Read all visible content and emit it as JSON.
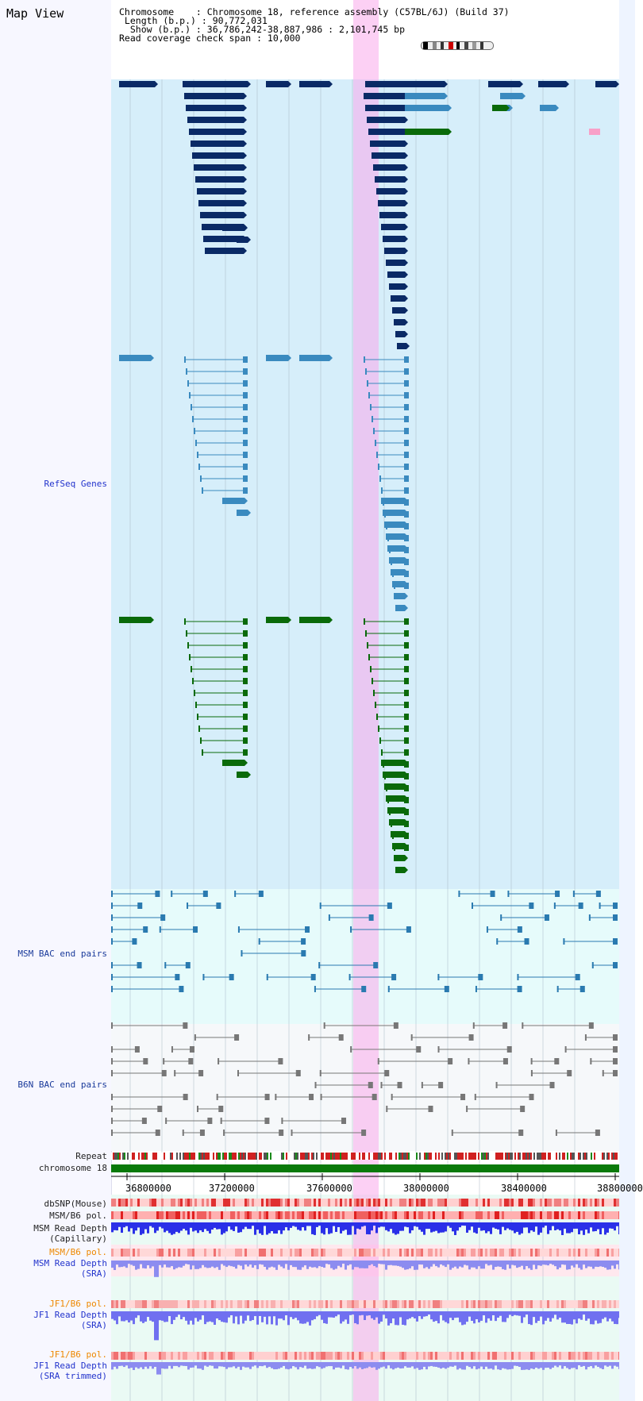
{
  "page_title": "Map View",
  "header": {
    "chromosome_line": "Chromosome    : Chromosome 18, reference assembly (C57BL/6J) (Build 37)",
    "length_line": " Length (b.p.) : 90,772,031",
    "show_line": "  Show (b.p.) : 36,786,242-38,887,986 : 2,101,745 bp",
    "span_line": "Read coverage check span : 10,000"
  },
  "tracks": {
    "refseq": "RefSeq Genes",
    "msm_bac": "MSM BAC end pairs",
    "b6n_bac": "B6N BAC end pairs",
    "repeat": "Repeat",
    "chromosome": "chromosome 18",
    "dbsnp": "dbSNP(Mouse)",
    "msm_b6_pol": "MSM/B6 pol.",
    "msm_read_depth_cap_1": "MSM Read Depth",
    "msm_read_depth_cap_2": "(Capillary)",
    "msm_b6_pol_2": "MSM/B6 pol.",
    "msm_read_depth_sra_1": "MSM Read Depth",
    "msm_read_depth_sra_2": "(SRA)",
    "jf1_b6_pol": "JF1/B6 pol.",
    "jf1_read_depth_sra_1": "JF1 Read Depth",
    "jf1_read_depth_sra_2": "(SRA)",
    "jf1_b6_pol_2": "JF1/B6 pol.",
    "jf1_read_depth_trim_1": "JF1 Read Depth",
    "jf1_read_depth_trim_2": "(SRA trimmed)"
  },
  "axis_ticks": [
    "36800000",
    "37200000",
    "37600000",
    "38000000",
    "38400000",
    "38800000"
  ],
  "colors": {
    "refseq_bg": "#d6eefa",
    "bac_bg": "#e8fcfc",
    "b6n_bg": "#f6f8fa",
    "gene_dark": "#0a2a66",
    "gene_mid": "#3a8abf",
    "gene_green": "#0a6a0a",
    "chromosome_bar": "#0a7a0a",
    "highlight": "#f8c0f0"
  }
}
